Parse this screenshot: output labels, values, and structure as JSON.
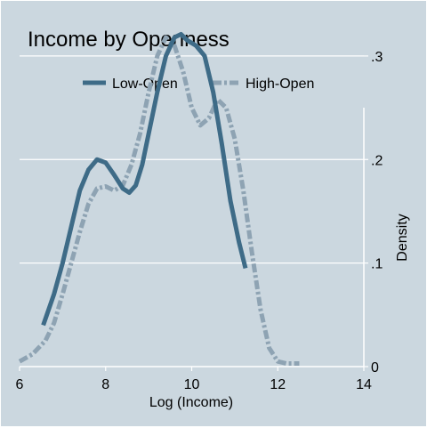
{
  "chart_data": {
    "type": "line",
    "title": "Income by Openness",
    "xlabel": "Log (Income)",
    "ylabel": "Density",
    "xlim": [
      6,
      14
    ],
    "ylim": [
      0,
      0.33
    ],
    "x_ticks": [
      6,
      8,
      10,
      12,
      14
    ],
    "x_tick_labels": [
      "6",
      "8",
      "10",
      "12",
      "14"
    ],
    "y_ticks": [
      0,
      0.1,
      0.2,
      0.3
    ],
    "y_tick_labels": [
      "0",
      ".1",
      ".2",
      ".3"
    ],
    "y_axis_side": "right",
    "grid": "horizontal",
    "legend": {
      "position": "top",
      "entries": [
        "Low-Open",
        "High-Open"
      ]
    },
    "series": [
      {
        "name": "Low-Open",
        "style": "solid",
        "color": "#3e6b87",
        "x": [
          6.55,
          6.8,
          7.0,
          7.2,
          7.4,
          7.6,
          7.8,
          8.0,
          8.2,
          8.4,
          8.55,
          8.7,
          8.85,
          9.0,
          9.2,
          9.4,
          9.6,
          9.75,
          9.9,
          10.1,
          10.3,
          10.5,
          10.7,
          10.9,
          11.1,
          11.25
        ],
        "y": [
          0.04,
          0.07,
          0.1,
          0.135,
          0.17,
          0.19,
          0.2,
          0.197,
          0.185,
          0.172,
          0.168,
          0.175,
          0.195,
          0.225,
          0.265,
          0.3,
          0.318,
          0.321,
          0.315,
          0.31,
          0.3,
          0.265,
          0.215,
          0.16,
          0.12,
          0.095
        ]
      },
      {
        "name": "High-Open",
        "style": "dash-dot",
        "color": "#8ea3b3",
        "x": [
          6.0,
          6.3,
          6.6,
          6.8,
          7.0,
          7.2,
          7.4,
          7.6,
          7.8,
          8.0,
          8.2,
          8.4,
          8.6,
          8.8,
          9.0,
          9.2,
          9.4,
          9.6,
          9.8,
          10.0,
          10.2,
          10.4,
          10.6,
          10.8,
          11.0,
          11.2,
          11.4,
          11.6,
          11.8,
          12.0,
          12.2,
          12.5
        ],
        "y": [
          0.005,
          0.012,
          0.025,
          0.042,
          0.07,
          0.1,
          0.13,
          0.157,
          0.172,
          0.174,
          0.17,
          0.175,
          0.195,
          0.225,
          0.265,
          0.3,
          0.318,
          0.31,
          0.285,
          0.25,
          0.233,
          0.24,
          0.258,
          0.25,
          0.22,
          0.17,
          0.11,
          0.055,
          0.018,
          0.005,
          0.003,
          0.003
        ]
      }
    ]
  }
}
